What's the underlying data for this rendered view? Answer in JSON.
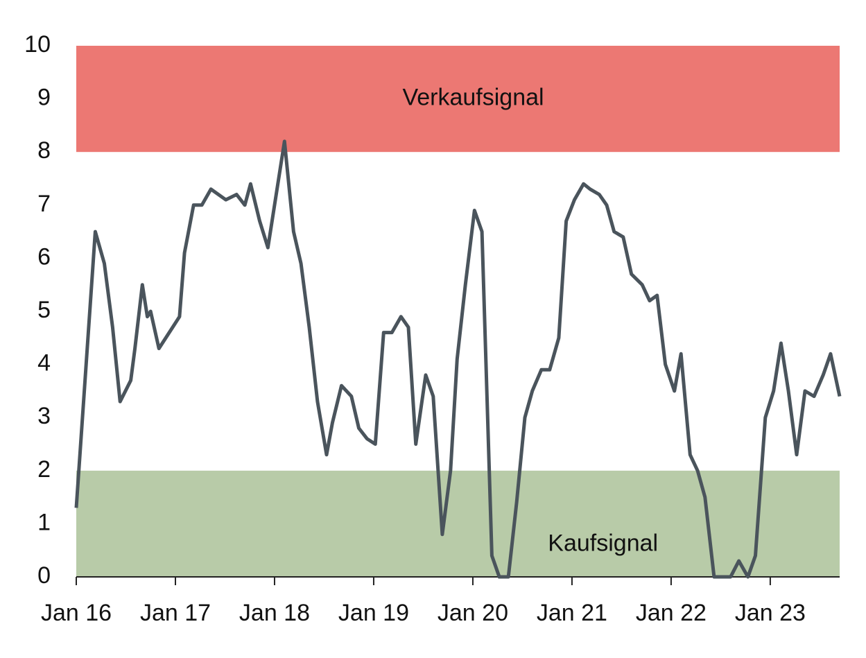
{
  "chart_data": {
    "type": "line",
    "x": [
      0,
      2.3,
      3.4,
      4.4,
      5.3,
      6.6,
      7.1,
      8.0,
      8.6,
      9.0,
      10.0,
      12.5,
      13.1,
      14.2,
      15.2,
      16.3,
      18.1,
      19.4,
      20.4,
      21.1,
      22.2,
      23.2,
      25.2,
      26.3,
      27.2,
      28.2,
      29.2,
      30.3,
      31.0,
      32.1,
      33.3,
      34.2,
      35.2,
      36.2,
      37.2,
      38.2,
      39.3,
      40.2,
      41.1,
      42.3,
      43.2,
      44.3,
      45.3,
      46.1,
      47.1,
      48.2,
      49.1,
      50.3,
      51.2,
      52.3,
      53.3,
      54.3,
      55.2,
      56.3,
      57.3,
      58.4,
      59.3,
      60.3,
      61.4,
      62.2,
      63.3,
      64.2,
      65.1,
      66.2,
      67.2,
      68.5,
      69.4,
      70.3,
      71.3,
      72.4,
      73.2,
      74.3,
      75.2,
      76.1,
      77.2,
      79.2,
      80.2,
      81.3,
      82.2,
      83.4,
      84.4,
      85.3,
      86.2,
      87.2,
      88.2,
      89.3,
      90.4,
      91.3,
      92.4
    ],
    "series": [
      {
        "color": "#4a545c",
        "values": [
          1.3,
          6.5,
          5.9,
          4.7,
          3.3,
          3.7,
          4.3,
          5.5,
          4.9,
          5.0,
          4.3,
          4.9,
          6.1,
          7.0,
          7.0,
          7.3,
          7.1,
          7.2,
          7.0,
          7.4,
          6.7,
          6.2,
          8.2,
          6.5,
          5.9,
          4.7,
          3.3,
          2.3,
          2.9,
          3.6,
          3.4,
          2.8,
          2.6,
          2.5,
          4.6,
          4.6,
          4.9,
          4.7,
          2.5,
          3.8,
          3.4,
          0.8,
          2.0,
          4.1,
          5.5,
          6.9,
          6.5,
          0.4,
          0,
          0,
          1.4,
          3.0,
          3.5,
          3.9,
          3.9,
          4.5,
          6.7,
          7.1,
          7.4,
          7.3,
          7.2,
          7.0,
          6.5,
          6.4,
          5.7,
          5.5,
          5.2,
          5.3,
          4.0,
          3.5,
          4.2,
          2.3,
          2.0,
          1.5,
          0,
          0,
          0.3,
          0,
          0.4,
          3.0,
          3.5,
          4.4,
          3.5,
          2.3,
          3.5,
          3.4,
          3.8,
          4.2,
          3.4
        ]
      }
    ],
    "xlim": [
      0,
      92.4
    ],
    "xticks": [
      {
        "value": 0,
        "label": "Jan 16"
      },
      {
        "value": 12,
        "label": "Jan 17"
      },
      {
        "value": 24,
        "label": "Jan 18"
      },
      {
        "value": 36,
        "label": "Jan 19"
      },
      {
        "value": 48,
        "label": "Jan 20"
      },
      {
        "value": 60,
        "label": "Jan 21"
      },
      {
        "value": 72,
        "label": "Jan 22"
      },
      {
        "value": 84,
        "label": "Jan 23"
      }
    ],
    "ylim": [
      0,
      10
    ],
    "yticks": [
      0,
      1,
      2,
      3,
      4,
      5,
      6,
      7,
      8,
      9,
      10
    ],
    "bands": [
      {
        "label": "Verkaufsignal",
        "from": 8,
        "to": 10,
        "color": "#ec7873"
      },
      {
        "label": "Kaufsignal",
        "from": 0,
        "to": 2,
        "color": "#b8cba8"
      }
    ],
    "grid": false
  }
}
